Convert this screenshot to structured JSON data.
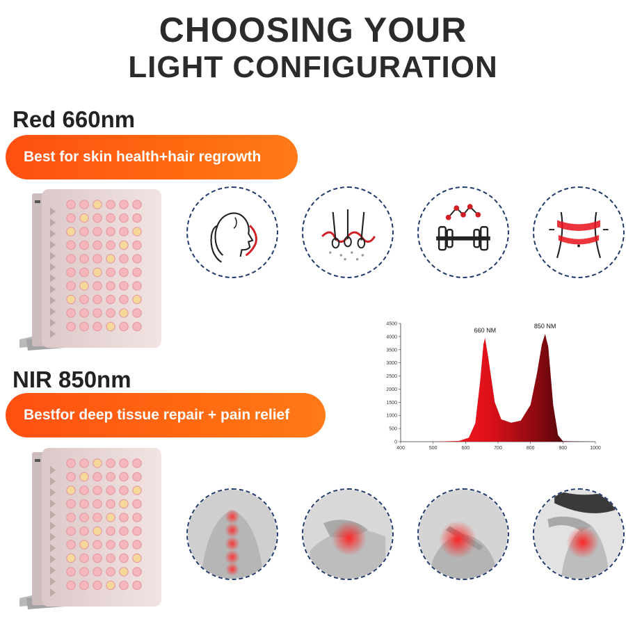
{
  "headline": {
    "line1": "CHOOSING YOUR",
    "line2": "LIGHT CONFIGURATION"
  },
  "colors": {
    "accent": "#ff5a14",
    "dashed_border": "#1f3a6b",
    "red_light": "#e8101a",
    "nir_light": "#3a0708"
  },
  "red_section": {
    "title": "Red 660nm",
    "benefit": "Best for skin health+hair regrowth",
    "icons": [
      "face-skin-icon",
      "hair-follicle-icon",
      "barbell-icon",
      "waist-slimming-icon"
    ]
  },
  "nir_section": {
    "title": "NIR 850nm",
    "benefit": "Bestfor deep tissue repair + pain relief",
    "icons": [
      "spine-pain-icon",
      "knee-pain-icon",
      "chest-pain-icon",
      "neck-pain-icon"
    ]
  },
  "chart_data": {
    "type": "area",
    "x_ticks": [
      "400",
      "500",
      "600",
      "700",
      "800",
      "900",
      "1000"
    ],
    "y_ticks": [
      "0",
      "500",
      "1000",
      "1500",
      "2000",
      "2500",
      "3000",
      "3500",
      "4000",
      "4500"
    ],
    "xlim": [
      400,
      1000
    ],
    "ylim": [
      0,
      4500
    ],
    "grid": false,
    "peaks": [
      {
        "label": "660 NM",
        "x": 660,
        "y": 3950
      },
      {
        "label": "850 NM",
        "x": 845,
        "y": 4100
      }
    ],
    "series": [
      {
        "x": [
          400,
          500,
          580,
          610,
          630,
          645,
          655,
          660,
          670,
          690,
          710,
          740,
          770,
          800,
          820,
          835,
          845,
          855,
          870,
          885,
          900,
          1000
        ],
        "y": [
          0,
          0,
          30,
          150,
          700,
          2300,
          3700,
          3950,
          3200,
          1500,
          850,
          720,
          800,
          1400,
          2600,
          3700,
          4100,
          3600,
          1400,
          250,
          20,
          0
        ]
      }
    ]
  }
}
